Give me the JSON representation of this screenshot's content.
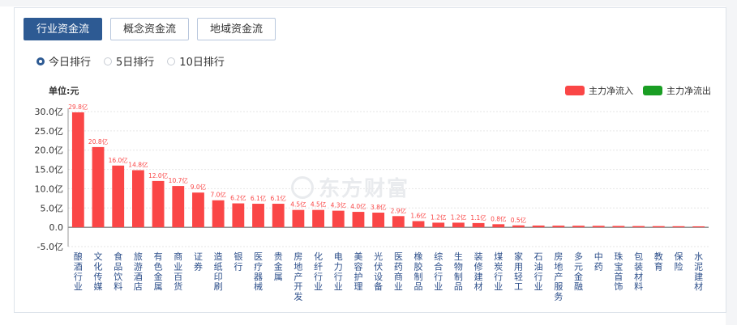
{
  "tabs": [
    {
      "label": "行业资金流",
      "active": true
    },
    {
      "label": "概念资金流",
      "active": false
    },
    {
      "label": "地域资金流",
      "active": false
    }
  ],
  "radios": [
    {
      "label": "今日排行",
      "checked": true
    },
    {
      "label": "5日排行",
      "checked": false
    },
    {
      "label": "10日排行",
      "checked": false
    }
  ],
  "unit_label": "单位:元",
  "legend": [
    {
      "label": "主力净流入",
      "color": "#fa4646"
    },
    {
      "label": "主力净流出",
      "color": "#1a9e24"
    }
  ],
  "watermark": "东方财富",
  "chart_data": {
    "type": "bar",
    "ylim": [
      -5,
      30
    ],
    "yticks": [
      -5,
      0,
      5,
      10,
      15,
      20,
      25,
      30
    ],
    "ytick_labels": [
      "-5.0亿",
      "0.0",
      "5.0亿",
      "10.0亿",
      "15.0亿",
      "20.0亿",
      "25.0亿",
      "30.0亿"
    ],
    "categories": [
      "酿酒行业",
      "文化传媒",
      "食品饮料",
      "旅游酒店",
      "有色金属",
      "商业百货",
      "证券",
      "造纸印刷",
      "银行",
      "医疗器械",
      "贵金属",
      "房地产开发",
      "化纤行业",
      "电力行业",
      "美容护理",
      "光伏设备",
      "医药商业",
      "橡胶制品",
      "综合行业",
      "生物制品",
      "装修建材",
      "煤炭行业",
      "家用轻工",
      "石油行业",
      "房地产服务",
      "多元金融",
      "中药",
      "珠宝首饰",
      "包装材料",
      "教育",
      "保险",
      "水泥建材"
    ],
    "values": [
      29.8,
      20.8,
      16.0,
      14.8,
      12.0,
      10.7,
      9.0,
      7.0,
      6.2,
      6.1,
      6.1,
      4.5,
      4.5,
      4.3,
      4.0,
      3.8,
      2.9,
      1.6,
      1.2,
      1.2,
      1.1,
      0.8,
      0.5,
      0.45,
      0.42,
      0.4,
      0.38,
      0.35,
      0.32,
      0.3,
      0.28,
      0.25
    ],
    "data_labels": [
      "29.8亿",
      "20.8亿",
      "16.0亿",
      "14.8亿",
      "12.0亿",
      "10.7亿",
      "9.0亿",
      "7.0亿",
      "6.2亿",
      "6.1亿",
      "6.1亿",
      "4.5亿",
      "4.5亿",
      "4.3亿",
      "4.0亿",
      "3.8亿",
      "2.9亿",
      "1.6亿",
      "1.2亿",
      "1.2亿",
      "1.1亿",
      "0.8亿",
      "0.5亿",
      "",
      "",
      "",
      "",
      "",
      "",
      "",
      "",
      ""
    ],
    "bar_color": "#fa4646",
    "label_color": "#fa4646",
    "grid": true
  }
}
